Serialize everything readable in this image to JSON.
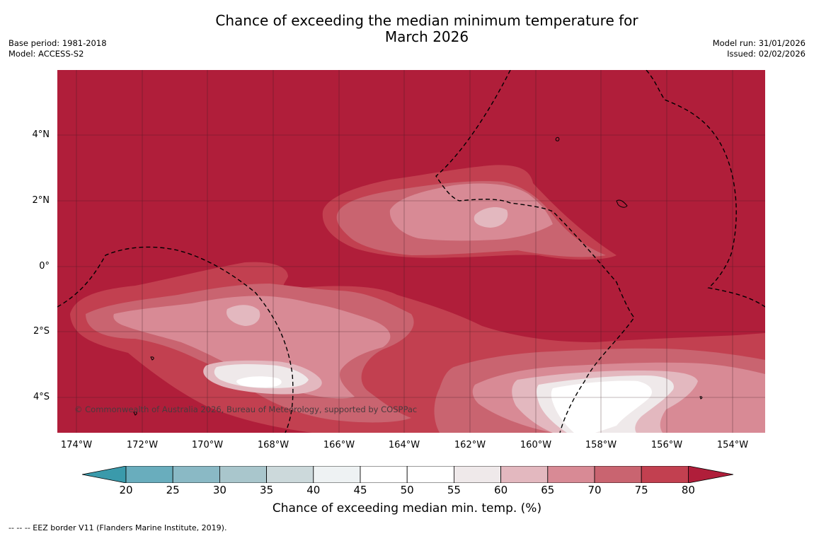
{
  "title_line1": "Chance of exceeding the median minimum temperature for",
  "title_line2": "March 2026",
  "base_period": "Base period: 1981-2018",
  "model": "Model: ACCESS-S2",
  "model_run": "Model run: 31/01/2026",
  "issued": "Issued: 02/02/2026",
  "copyright": "© Commonwealth of Australia 2026, Bureau of Meteorology, supported by COSPPac",
  "lat_labels": [
    "4°N",
    "2°N",
    "0°",
    "2°S",
    "4°S"
  ],
  "lon_labels": [
    "174°W",
    "172°W",
    "170°W",
    "168°W",
    "166°W",
    "164°W",
    "162°W",
    "160°W",
    "158°W",
    "156°W",
    "154°W"
  ],
  "colorbar": {
    "ticks": [
      "20",
      "25",
      "30",
      "35",
      "40",
      "45",
      "50",
      "55",
      "60",
      "65",
      "70",
      "75",
      "80"
    ],
    "colors": [
      "#3a9aab",
      "#69adbd",
      "#8ab9c5",
      "#a9c6cc",
      "#ccd9db",
      "#eef2f3",
      "#ffffff",
      "#ffffff",
      "#efe9ea",
      "#e3b8bf",
      "#d88a95",
      "#c96470",
      "#c24050",
      "#b01e3a"
    ],
    "label": "Chance of exceeding median min. temp. (%)"
  },
  "eez_note": "--  --  -- EEZ border V11 (Flanders Marine Institute, 2019)."
}
